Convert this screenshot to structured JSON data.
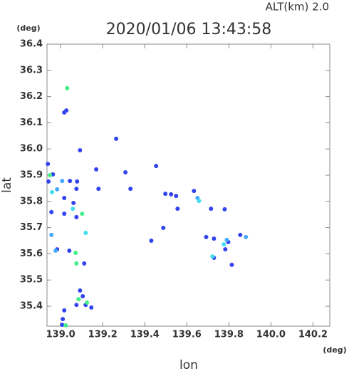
{
  "chart_data": {
    "type": "scatter",
    "title": "2020/01/06 13:43:58",
    "subtitle": "ALT(km)  2.0",
    "x_label": "lon",
    "y_label": "lat",
    "x_unit": "(deg)",
    "y_unit": "(deg)",
    "xlim": [
      138.935,
      140.28
    ],
    "ylim": [
      35.324,
      36.4
    ],
    "xticks": [
      {
        "value": 139,
        "label": "139.0"
      },
      139.2,
      139.4,
      139.6,
      139.8,
      {
        "value": 140,
        "label": "140.0"
      },
      140.2
    ],
    "yticks": [
      35.4,
      35.5,
      35.6,
      35.7,
      35.8,
      35.9,
      {
        "value": 36,
        "label": "36.0"
      },
      36.1,
      36.2,
      36.3,
      36.4
    ],
    "series": [
      {
        "color": "#3344ee",
        "x": [
          139.027,
          139.017,
          139.092,
          138.939,
          138.963,
          139.044,
          139.078,
          139.075,
          139.169,
          139.18,
          139.017,
          139.061,
          138.956,
          139.017,
          139.075,
          139.264,
          139.308,
          139.332,
          139.454,
          139.498,
          139.525,
          139.549,
          139.634,
          139.556,
          139.488,
          139.431,
          139.715,
          139.78,
          139.692,
          139.729,
          139.854,
          139.797,
          139.783,
          139.729,
          139.814,
          138.983,
          139.041,
          139.112,
          139.092,
          139.105,
          139.146,
          139.119,
          139.075,
          139.017,
          139.01,
          139.007,
          138.942
        ],
        "y": [
          36.147,
          36.139,
          35.995,
          35.943,
          35.903,
          35.878,
          35.876,
          35.848,
          35.922,
          35.848,
          35.813,
          35.794,
          35.759,
          35.753,
          35.74,
          36.039,
          35.911,
          35.848,
          35.935,
          35.829,
          35.827,
          35.821,
          35.84,
          35.772,
          35.699,
          35.65,
          35.772,
          35.77,
          35.664,
          35.658,
          35.672,
          35.645,
          35.617,
          35.585,
          35.558,
          35.617,
          35.612,
          35.563,
          35.46,
          35.438,
          35.395,
          35.405,
          35.405,
          35.384,
          35.351,
          35.329,
          35.876
        ]
      },
      {
        "color": "#44aaff",
        "x": [
          139.007,
          138.983,
          138.956,
          138.976,
          139.79,
          139.881,
          139.651
        ],
        "y": [
          35.878,
          35.846,
          35.672,
          35.612,
          35.653,
          35.664,
          35.813
        ]
      },
      {
        "color": "#44ddee",
        "x": [
          138.959,
          139.058,
          139.119,
          139.722,
          139.658,
          139.776
        ],
        "y": [
          35.835,
          35.772,
          35.68,
          35.59,
          35.802,
          35.636
        ]
      },
      {
        "color": "#44ee88",
        "x": [
          139.031,
          138.949,
          139.102,
          139.075,
          139.085,
          139.125,
          139.024,
          139.071
        ],
        "y": [
          36.232,
          35.9,
          35.753,
          35.563,
          35.427,
          35.414,
          35.327,
          35.604
        ]
      }
    ]
  }
}
